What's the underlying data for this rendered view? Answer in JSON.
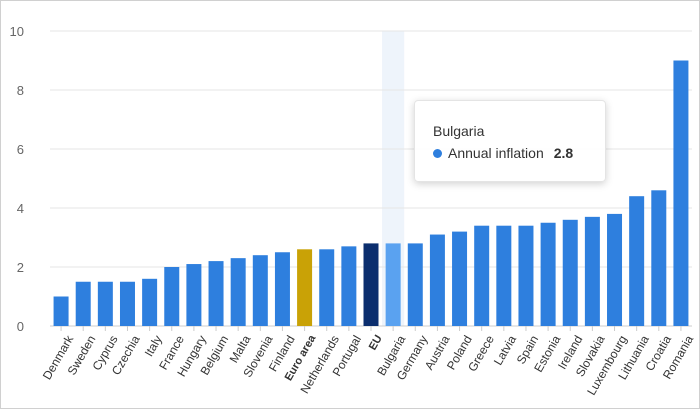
{
  "chart_data": {
    "type": "bar",
    "title": "",
    "xlabel": "",
    "ylabel": "",
    "ylim": [
      0,
      10
    ],
    "yticks": [
      0,
      2,
      4,
      6,
      8,
      10
    ],
    "grid": true,
    "categories": [
      "Denmark",
      "Sweden",
      "Cyprus",
      "Czechia",
      "Italy",
      "France",
      "Hungary",
      "Belgium",
      "Malta",
      "Slovenia",
      "Finland",
      "Euro area",
      "Netherlands",
      "Portugal",
      "EU",
      "Bulgaria",
      "Germany",
      "Austria",
      "Poland",
      "Greece",
      "Latvia",
      "Spain",
      "Estonia",
      "Ireland",
      "Slovakia",
      "Luxembourg",
      "Lithuania",
      "Croatia",
      "Romania"
    ],
    "series": [
      {
        "name": "Annual inflation",
        "values": [
          1.0,
          1.5,
          1.5,
          1.5,
          1.6,
          2.0,
          2.1,
          2.2,
          2.3,
          2.4,
          2.5,
          2.6,
          2.6,
          2.7,
          2.8,
          2.8,
          2.8,
          3.1,
          3.2,
          3.4,
          3.4,
          3.4,
          3.5,
          3.6,
          3.7,
          3.8,
          4.4,
          4.6,
          9.0
        ]
      }
    ],
    "bold_categories": [
      "Euro area",
      "EU"
    ],
    "highlighted_category": "Bulgaria",
    "colors": {
      "default": "#2e7fde",
      "Euro area": "#c9a206",
      "EU": "#0b2e6e",
      "Bulgaria": "#5aa2f0",
      "hover_band": "#eef4fb",
      "grid": "#e6e6e6"
    }
  },
  "tooltip": {
    "title": "Bulgaria",
    "series_name": "Annual inflation",
    "value": "2.8"
  }
}
